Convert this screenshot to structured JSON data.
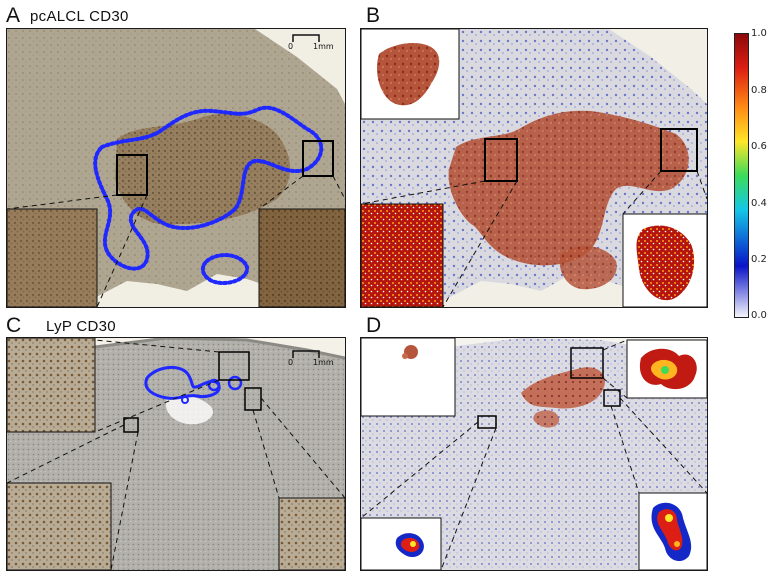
{
  "figure": {
    "panels": {
      "a": {
        "label": "A",
        "title": "pcALCL  CD30"
      },
      "b": {
        "label": "B"
      },
      "c": {
        "label": "C",
        "title": "LyP  CD30"
      },
      "d": {
        "label": "D"
      }
    },
    "scale_bar": {
      "left_tick": "0",
      "right_tick": "1mm"
    },
    "colorbar": {
      "ticks": [
        "1.0",
        "0.8",
        "0.6",
        "0.4",
        "0.2",
        "0.0"
      ],
      "colors": [
        "#f5f5fb",
        "#0a14c8",
        "#14c8e6",
        "#3cdc5a",
        "#ffe628",
        "#ff8c14",
        "#dc1e14",
        "#8c0a0a"
      ]
    }
  }
}
